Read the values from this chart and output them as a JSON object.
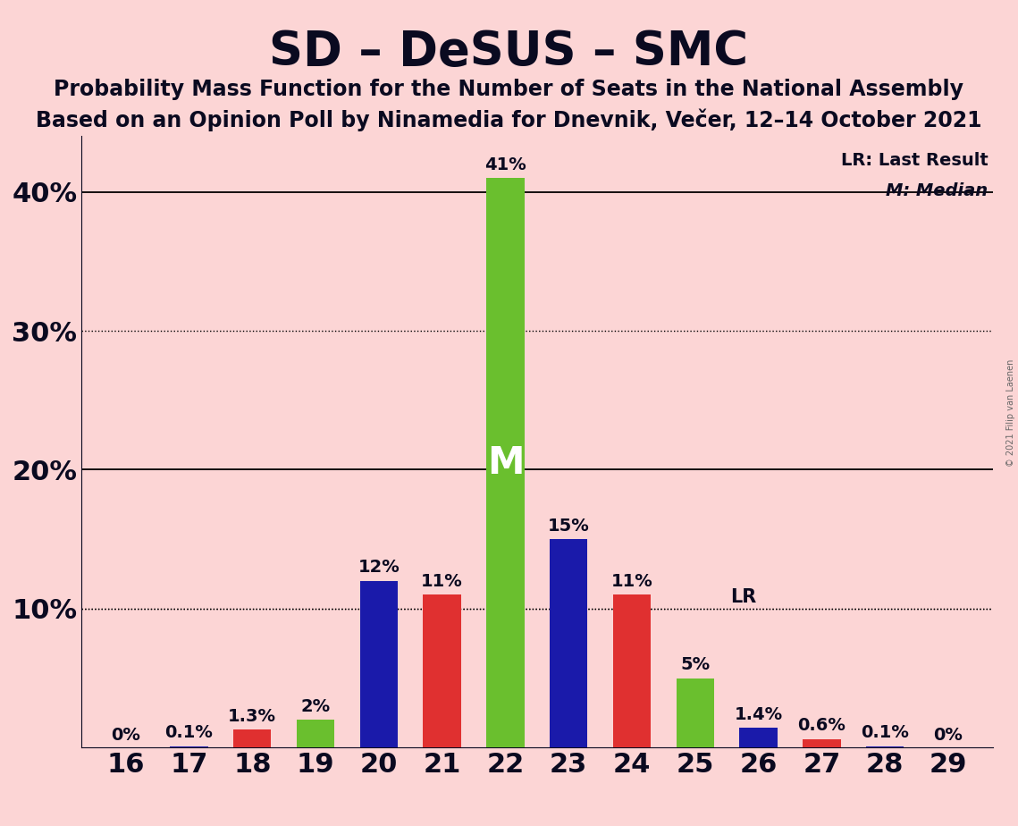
{
  "title": "SD – DeSUS – SMC",
  "subtitle1": "Probability Mass Function for the Number of Seats in the National Assembly",
  "subtitle2": "Based on an Opinion Poll by Ninamedia for Dnevnik, Večer, 12–14 October 2021",
  "copyright": "© 2021 Filip van Laenen",
  "background_color": "#fcd5d5",
  "bar_colors": {
    "blue": "#1a1aaa",
    "red": "#e03030",
    "green": "#6abf2e"
  },
  "seats": [
    16,
    17,
    18,
    19,
    20,
    21,
    22,
    23,
    24,
    25,
    26,
    27,
    28,
    29
  ],
  "values": [
    0.0,
    0.1,
    1.3,
    2.0,
    12.0,
    11.0,
    41.0,
    15.0,
    11.0,
    5.0,
    1.4,
    0.6,
    0.1,
    0.0
  ],
  "colors": [
    "blue",
    "blue",
    "red",
    "green",
    "blue",
    "red",
    "green",
    "blue",
    "red",
    "green",
    "blue",
    "red",
    "blue",
    "blue"
  ],
  "labels": [
    "0%",
    "0.1%",
    "1.3%",
    "2%",
    "12%",
    "11%",
    "41%",
    "15%",
    "11%",
    "5%",
    "1.4%",
    "0.6%",
    "0.1%",
    "0%"
  ],
  "LR_value": 10.0,
  "median_seat": 22,
  "ylim": [
    0,
    44
  ],
  "yticks": [
    0,
    10,
    20,
    30,
    40
  ],
  "ytick_labels": [
    "",
    "10%",
    "20%",
    "30%",
    "40%"
  ],
  "dotted_lines": [
    10.0,
    30.0
  ],
  "solid_lines": [
    20.0,
    40.0
  ],
  "legend_LR": "LR: Last Result",
  "legend_M": "M: Median",
  "title_fontsize": 38,
  "subtitle_fontsize": 17,
  "axis_fontsize": 22,
  "label_fontsize": 14
}
